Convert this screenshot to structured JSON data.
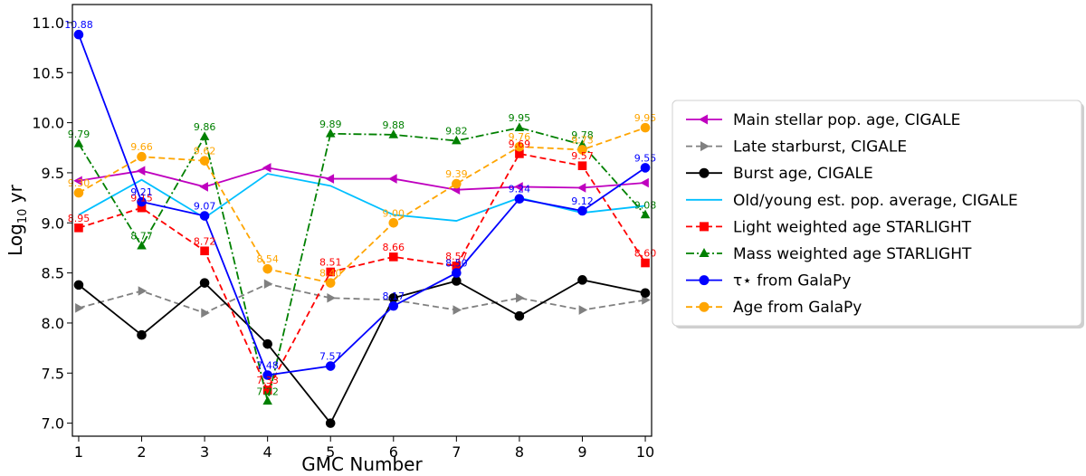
{
  "chart_data": {
    "type": "line",
    "xlabel": "GMC Number",
    "ylabel_main": "Log",
    "ylabel_sub": "10",
    "ylabel_tail": " yr",
    "x": [
      1,
      2,
      3,
      4,
      5,
      6,
      7,
      8,
      9,
      10
    ],
    "xlim": [
      0.9,
      10.1
    ],
    "ylim": [
      6.87,
      11.18
    ],
    "xticks": [
      1,
      2,
      3,
      4,
      5,
      6,
      7,
      8,
      9,
      10
    ],
    "yticks": [
      7.0,
      7.5,
      8.0,
      8.5,
      9.0,
      9.5,
      10.0,
      10.5,
      11.0
    ],
    "ytick_labels": [
      "7.0",
      "7.5",
      "8.0",
      "8.5",
      "9.0",
      "9.5",
      "10.0",
      "10.5",
      "11.0"
    ],
    "grid": false,
    "legend_position": "right, outside the axes",
    "series": [
      {
        "name": "Main stellar pop. age, CIGALE",
        "color": "#bf00bf",
        "dash": "solid",
        "marker": "triangle-left",
        "values": [
          9.42,
          9.52,
          9.36,
          9.55,
          9.44,
          9.44,
          9.33,
          9.36,
          9.35,
          9.4
        ],
        "labels": null
      },
      {
        "name": "Late starburst, CIGALE",
        "color": "#808080",
        "dash": "dashed",
        "marker": "triangle-right",
        "values": [
          8.15,
          8.32,
          8.1,
          8.39,
          8.25,
          8.23,
          8.13,
          8.25,
          8.13,
          8.23
        ],
        "labels": null
      },
      {
        "name": "Burst age, CIGALE",
        "color": "#000000",
        "dash": "solid",
        "marker": "circle",
        "values": [
          8.38,
          7.88,
          8.4,
          7.79,
          7.0,
          8.25,
          8.42,
          8.07,
          8.43,
          8.3
        ],
        "labels": null
      },
      {
        "name": "Old/young est. pop. average, CIGALE",
        "color": "#00bfff",
        "dash": "solid",
        "marker": "none",
        "values": [
          9.08,
          9.43,
          9.05,
          9.49,
          9.37,
          9.08,
          9.02,
          9.25,
          9.1,
          9.17
        ],
        "labels": null
      },
      {
        "name": "Light weighted age STARLIGHT",
        "color": "#ff0000",
        "dash": "dashed",
        "marker": "square",
        "values": [
          8.95,
          9.15,
          8.72,
          7.33,
          8.51,
          8.66,
          8.57,
          9.69,
          9.57,
          8.6
        ],
        "labels": [
          "8.95",
          "9.15",
          "8.72",
          "7.33",
          "8.51",
          "8.66",
          "8.57",
          "9.69",
          "9.57",
          "8.60"
        ]
      },
      {
        "name": "Mass weighted age STARLIGHT",
        "color": "#008000",
        "dash": "dashdot",
        "marker": "triangle-up",
        "values": [
          9.79,
          8.77,
          9.86,
          7.22,
          9.89,
          9.88,
          9.82,
          9.95,
          9.78,
          9.08
        ],
        "labels": [
          "9.79",
          "8.77",
          "9.86",
          "7.22",
          "9.89",
          "9.88",
          "9.82",
          "9.95",
          "9.78",
          "9.08"
        ]
      },
      {
        "name": "τ⋆ from GalaPy",
        "color": "#0000ff",
        "dash": "solid",
        "marker": "circle",
        "values": [
          10.88,
          9.21,
          9.07,
          7.48,
          7.57,
          8.17,
          8.5,
          9.24,
          9.12,
          9.55
        ],
        "labels": [
          "10.88",
          "9.21",
          "9.07",
          "7.48",
          "7.57",
          "8.17",
          "8.50",
          "9.24",
          "9.12",
          "9.55"
        ]
      },
      {
        "name": "Age from GalaPy",
        "color": "#ffa500",
        "dash": "dashed",
        "marker": "circle",
        "values": [
          9.3,
          9.66,
          9.62,
          8.54,
          8.4,
          9.0,
          9.39,
          9.76,
          9.73,
          9.95
        ],
        "labels": [
          "9.30",
          "9.66",
          "9.62",
          "8.54",
          "8.40",
          "9.00",
          "9.39",
          "9.76",
          "9.73",
          "9.95"
        ]
      }
    ]
  }
}
